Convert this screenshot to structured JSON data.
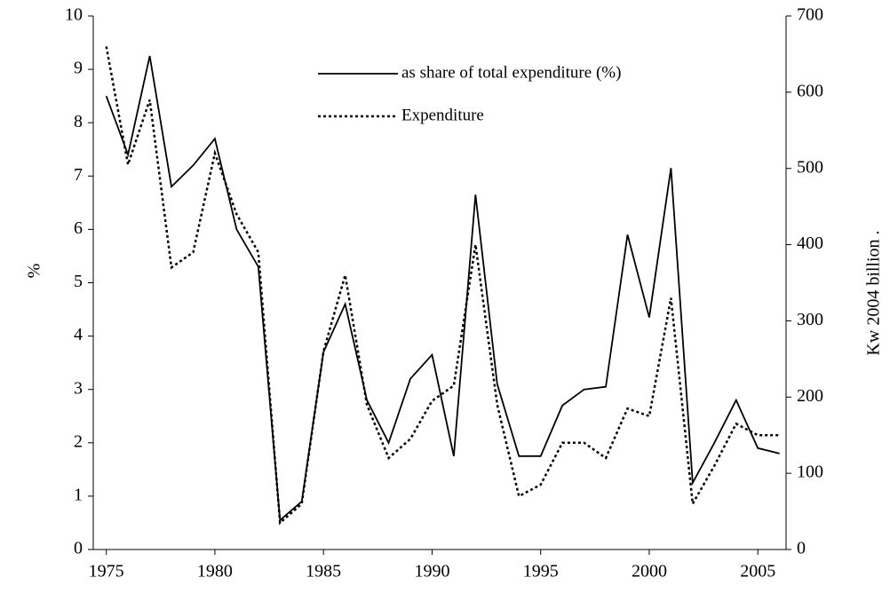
{
  "chart_data": {
    "type": "line",
    "x": [
      1975,
      1976,
      1977,
      1978,
      1979,
      1980,
      1981,
      1982,
      1983,
      1984,
      1985,
      1986,
      1987,
      1988,
      1989,
      1990,
      1991,
      1992,
      1993,
      1994,
      1995,
      1996,
      1997,
      1998,
      1999,
      2000,
      2001,
      2002,
      2003,
      2004,
      2005,
      2006
    ],
    "xlim": [
      1974.4,
      2006.3
    ],
    "xticks": [
      1975,
      1980,
      1985,
      1990,
      1995,
      2000,
      2005
    ],
    "ylim": [
      0,
      10
    ],
    "yticks": [
      0,
      1,
      2,
      3,
      4,
      5,
      6,
      7,
      8,
      9,
      10
    ],
    "y2lim": [
      0,
      700
    ],
    "y2ticks": [
      0,
      100,
      200,
      300,
      400,
      500,
      600,
      700
    ],
    "ylabel": "%",
    "y2label": "Kw 2004 billion .",
    "legend": "top",
    "series": [
      {
        "name": "as share of total expenditure (%)",
        "color": "#000000",
        "dash": "solid",
        "values": [
          8.5,
          7.4,
          9.25,
          6.8,
          7.2,
          7.7,
          6.0,
          5.3,
          0.55,
          0.9,
          3.7,
          4.6,
          2.8,
          2.0,
          3.2,
          3.65,
          1.75,
          6.65,
          3.1,
          1.75,
          1.75,
          2.7,
          3.0,
          3.05,
          5.9,
          4.35,
          7.15,
          1.25,
          2.0,
          2.8,
          1.9,
          1.8
        ]
      },
      {
        "name": "Expenditure",
        "color": "#000000",
        "dash": "dotted",
        "axis": "y2",
        "values": [
          660,
          505,
          590,
          370,
          390,
          520,
          440,
          390,
          35,
          60,
          260,
          360,
          190,
          120,
          145,
          195,
          215,
          400,
          190,
          70,
          85,
          140,
          140,
          120,
          185,
          175,
          330,
          60,
          110,
          165,
          150,
          150
        ]
      }
    ]
  }
}
